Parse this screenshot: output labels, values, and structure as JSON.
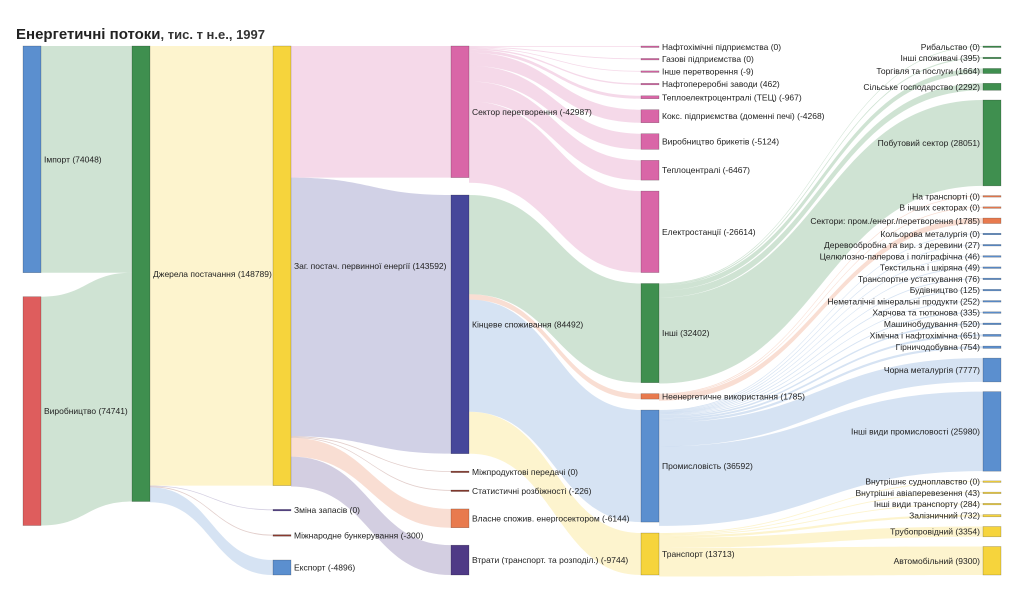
{
  "title": "Енергетичні потоки",
  "subtitle": ", тис. т н.е., 1997",
  "chart_data": {
    "type": "sankey",
    "title": "Енергетичні потоки",
    "subtitle": "тис. т н.е., 1997",
    "colors": {
      "import": "#5b8fcf",
      "production": "#de5d5d",
      "supply": "#3f8f4f",
      "tpes": "#f6d43c",
      "transformation": "#d966a7",
      "final": "#46479a",
      "industry": "#5b8fcf",
      "transport": "#f6d43c",
      "other": "#3f8f4f",
      "nonenergy": "#e87a4e",
      "energy_own": "#e87a4e",
      "losses": "#4f3a86",
      "small": "#8b3a2e"
    },
    "nodes": [
      {
        "id": "import",
        "label": "Імпорт (74048)",
        "value": 74048,
        "color": "import",
        "col": 0
      },
      {
        "id": "production",
        "label": "Виробництво (74741)",
        "value": 74741,
        "color": "production",
        "col": 0
      },
      {
        "id": "supply",
        "label": "Джерела постачання (148789)",
        "value": 148789,
        "color": "supply",
        "col": 1
      },
      {
        "id": "tpes",
        "label": "Заг. постач. первинної енергії (143592)",
        "value": 143592,
        "color": "tpes",
        "col": 2
      },
      {
        "id": "stock",
        "label": "Зміна запасів (0)",
        "value": 0,
        "color": "losses",
        "col": 2
      },
      {
        "id": "bunkers",
        "label": "Міжнародне бункерування (-300)",
        "value": 300,
        "color": "small",
        "col": 2
      },
      {
        "id": "export",
        "label": "Експорт (-4896)",
        "value": 4896,
        "color": "import",
        "col": 2
      },
      {
        "id": "transformation",
        "label": "Сектор перетворення (-42987)",
        "value": 42987,
        "color": "transformation",
        "col": 3
      },
      {
        "id": "final",
        "label": "Кінцеве споживання (84492)",
        "value": 84492,
        "color": "final",
        "col": 3
      },
      {
        "id": "interproduct",
        "label": "Міжпродуктові передачі (0)",
        "value": 0,
        "color": "small",
        "col": 3
      },
      {
        "id": "statdiff",
        "label": "Статистичні розбіжності (-226)",
        "value": 226,
        "color": "small",
        "col": 3
      },
      {
        "id": "ownuse",
        "label": "Власне спожив. енергосектором (-6144)",
        "value": 6144,
        "color": "energy_own",
        "col": 3
      },
      {
        "id": "losses",
        "label": "Втрати (транспорт. та розподіл.) (-9744)",
        "value": 9744,
        "color": "losses",
        "col": 3
      },
      {
        "id": "petchem",
        "label": "Нафтохімічні підприємства (0)",
        "value": 0,
        "color": "transformation",
        "col": 4
      },
      {
        "id": "gasworks",
        "label": "Газові підприємства (0)",
        "value": 0,
        "color": "transformation",
        "col": 4
      },
      {
        "id": "othertrans",
        "label": "Інше перетворення (-9)",
        "value": 9,
        "color": "transformation",
        "col": 4
      },
      {
        "id": "refineries",
        "label": "Нафтопереробні заводи (462)",
        "value": 462,
        "color": "transformation",
        "col": 4
      },
      {
        "id": "chp",
        "label": "Теплоелектроцентралі (ТЕЦ) (-967)",
        "value": 967,
        "color": "transformation",
        "col": 4
      },
      {
        "id": "coke",
        "label": "Кокс. підприємства (доменні печі) (-4268)",
        "value": 4268,
        "color": "transformation",
        "col": 4
      },
      {
        "id": "briquettes",
        "label": "Виробництво брикетів (-5124)",
        "value": 5124,
        "color": "transformation",
        "col": 4
      },
      {
        "id": "heat",
        "label": "Теплоцентралі (-6467)",
        "value": 6467,
        "color": "transformation",
        "col": 4
      },
      {
        "id": "power",
        "label": "Електростанції (-26614)",
        "value": 26614,
        "color": "transformation",
        "col": 4
      },
      {
        "id": "other",
        "label": "Інші (32402)",
        "value": 32402,
        "color": "other",
        "col": 4
      },
      {
        "id": "nonenergy",
        "label": "Неенергетичне використання (1785)",
        "value": 1785,
        "color": "nonenergy",
        "col": 4
      },
      {
        "id": "industry",
        "label": "Промисловість (36592)",
        "value": 36592,
        "color": "industry",
        "col": 4
      },
      {
        "id": "transport",
        "label": "Транспорт (13713)",
        "value": 13713,
        "color": "transport",
        "col": 4
      },
      {
        "id": "fishing",
        "label": "Рибальство (0)",
        "value": 0,
        "color": "other",
        "col": 5
      },
      {
        "id": "othercons",
        "label": "Інші споживачі (395)",
        "value": 395,
        "color": "other",
        "col": 5
      },
      {
        "id": "commerce",
        "label": "Торгівля та послуги (1664)",
        "value": 1664,
        "color": "other",
        "col": 5
      },
      {
        "id": "agri",
        "label": "Сільське господарство (2292)",
        "value": 2292,
        "color": "other",
        "col": 5
      },
      {
        "id": "residential",
        "label": "Побутовий сектор (28051)",
        "value": 28051,
        "color": "other",
        "col": 5
      },
      {
        "id": "ne_transport",
        "label": "На транспорті (0)",
        "value": 0,
        "color": "nonenergy",
        "col": 5
      },
      {
        "id": "ne_other",
        "label": "В інших секторах (0)",
        "value": 0,
        "color": "nonenergy",
        "col": 5
      },
      {
        "id": "ne_sectors",
        "label": "Сектори: пром./енерг./перетворення (1785)",
        "value": 1785,
        "color": "nonenergy",
        "col": 5
      },
      {
        "id": "nonferrous",
        "label": "Кольорова металургія (0)",
        "value": 0,
        "color": "industry",
        "col": 5
      },
      {
        "id": "wood",
        "label": "Деревообробна та вир. з деревини (27)",
        "value": 27,
        "color": "industry",
        "col": 5
      },
      {
        "id": "paper",
        "label": "Целюлозно-паперова і поліграфічна (46)",
        "value": 46,
        "color": "industry",
        "col": 5
      },
      {
        "id": "textile",
        "label": "Текстильна і шкіряна (49)",
        "value": 49,
        "color": "industry",
        "col": 5
      },
      {
        "id": "transeq",
        "label": "Транспортне устаткування (76)",
        "value": 76,
        "color": "industry",
        "col": 5
      },
      {
        "id": "construction",
        "label": "Будівництво (125)",
        "value": 125,
        "color": "industry",
        "col": 5
      },
      {
        "id": "nonmetal",
        "label": "Неметалічні мінеральні продукти (252)",
        "value": 252,
        "color": "industry",
        "col": 5
      },
      {
        "id": "food",
        "label": "Харчова та тютюнова (335)",
        "value": 335,
        "color": "industry",
        "col": 5
      },
      {
        "id": "machinery",
        "label": "Машинобудування (520)",
        "value": 520,
        "color": "industry",
        "col": 5
      },
      {
        "id": "chemical",
        "label": "Хімічна і нафтохімічна (651)",
        "value": 651,
        "color": "industry",
        "col": 5
      },
      {
        "id": "mining",
        "label": "Гірничодобувна (754)",
        "value": 754,
        "color": "industry",
        "col": 5
      },
      {
        "id": "ironsteel",
        "label": "Чорна металургія (7777)",
        "value": 7777,
        "color": "industry",
        "col": 5
      },
      {
        "id": "otherind",
        "label": "Інші види промисловості (25980)",
        "value": 25980,
        "color": "industry",
        "col": 5
      },
      {
        "id": "navigation",
        "label": "Внутрішнє судноплавство (0)",
        "value": 0,
        "color": "transport",
        "col": 5
      },
      {
        "id": "aviation",
        "label": "Внутрішні авіаперевезення (43)",
        "value": 43,
        "color": "transport",
        "col": 5
      },
      {
        "id": "othertransp",
        "label": "Інші види транспорту (284)",
        "value": 284,
        "color": "transport",
        "col": 5
      },
      {
        "id": "rail",
        "label": "Залізничний (732)",
        "value": 732,
        "color": "transport",
        "col": 5
      },
      {
        "id": "pipeline",
        "label": "Трубопровідний (3354)",
        "value": 3354,
        "color": "transport",
        "col": 5
      },
      {
        "id": "road",
        "label": "Автомобільний (9300)",
        "value": 9300,
        "color": "transport",
        "col": 5
      }
    ],
    "links": [
      {
        "source": "import",
        "target": "supply",
        "value": 74048
      },
      {
        "source": "production",
        "target": "supply",
        "value": 74741
      },
      {
        "source": "supply",
        "target": "tpes",
        "value": 143592
      },
      {
        "source": "supply",
        "target": "stock",
        "value": 0
      },
      {
        "source": "supply",
        "target": "bunkers",
        "value": 300
      },
      {
        "source": "supply",
        "target": "export",
        "value": 4896
      },
      {
        "source": "tpes",
        "target": "transformation",
        "value": 42987
      },
      {
        "source": "tpes",
        "target": "final",
        "value": 84492
      },
      {
        "source": "tpes",
        "target": "interproduct",
        "value": 0
      },
      {
        "source": "tpes",
        "target": "statdiff",
        "value": 226
      },
      {
        "source": "tpes",
        "target": "ownuse",
        "value": 6144
      },
      {
        "source": "tpes",
        "target": "losses",
        "value": 9744
      },
      {
        "source": "transformation",
        "target": "petchem",
        "value": 0
      },
      {
        "source": "transformation",
        "target": "gasworks",
        "value": 0
      },
      {
        "source": "transformation",
        "target": "othertrans",
        "value": 9
      },
      {
        "source": "transformation",
        "target": "refineries",
        "value": 462
      },
      {
        "source": "transformation",
        "target": "chp",
        "value": 967
      },
      {
        "source": "transformation",
        "target": "coke",
        "value": 4268
      },
      {
        "source": "transformation",
        "target": "briquettes",
        "value": 5124
      },
      {
        "source": "transformation",
        "target": "heat",
        "value": 6467
      },
      {
        "source": "transformation",
        "target": "power",
        "value": 26614
      },
      {
        "source": "final",
        "target": "other",
        "value": 32402
      },
      {
        "source": "final",
        "target": "nonenergy",
        "value": 1785
      },
      {
        "source": "final",
        "target": "industry",
        "value": 36592
      },
      {
        "source": "final",
        "target": "transport",
        "value": 13713
      },
      {
        "source": "other",
        "target": "fishing",
        "value": 0
      },
      {
        "source": "other",
        "target": "othercons",
        "value": 395
      },
      {
        "source": "other",
        "target": "commerce",
        "value": 1664
      },
      {
        "source": "other",
        "target": "agri",
        "value": 2292
      },
      {
        "source": "other",
        "target": "residential",
        "value": 28051
      },
      {
        "source": "nonenergy",
        "target": "ne_transport",
        "value": 0
      },
      {
        "source": "nonenergy",
        "target": "ne_other",
        "value": 0
      },
      {
        "source": "nonenergy",
        "target": "ne_sectors",
        "value": 1785
      },
      {
        "source": "industry",
        "target": "nonferrous",
        "value": 0
      },
      {
        "source": "industry",
        "target": "wood",
        "value": 27
      },
      {
        "source": "industry",
        "target": "paper",
        "value": 46
      },
      {
        "source": "industry",
        "target": "textile",
        "value": 49
      },
      {
        "source": "industry",
        "target": "transeq",
        "value": 76
      },
      {
        "source": "industry",
        "target": "construction",
        "value": 125
      },
      {
        "source": "industry",
        "target": "nonmetal",
        "value": 252
      },
      {
        "source": "industry",
        "target": "food",
        "value": 335
      },
      {
        "source": "industry",
        "target": "machinery",
        "value": 520
      },
      {
        "source": "industry",
        "target": "chemical",
        "value": 651
      },
      {
        "source": "industry",
        "target": "mining",
        "value": 754
      },
      {
        "source": "industry",
        "target": "ironsteel",
        "value": 7777
      },
      {
        "source": "industry",
        "target": "otherind",
        "value": 25980
      },
      {
        "source": "transport",
        "target": "navigation",
        "value": 0
      },
      {
        "source": "transport",
        "target": "aviation",
        "value": 43
      },
      {
        "source": "transport",
        "target": "othertransp",
        "value": 284
      },
      {
        "source": "transport",
        "target": "rail",
        "value": 732
      },
      {
        "source": "transport",
        "target": "pipeline",
        "value": 3354
      },
      {
        "source": "transport",
        "target": "road",
        "value": 9300
      }
    ]
  }
}
